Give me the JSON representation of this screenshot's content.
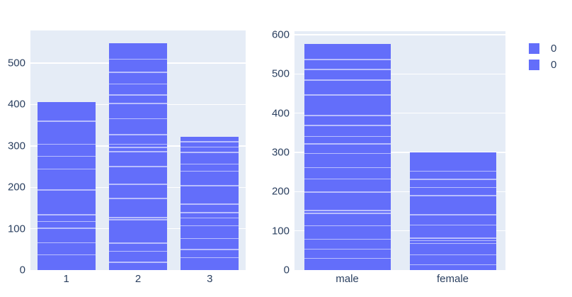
{
  "colors": {
    "background": "#ffffff",
    "plot_background": "#e5ecf6",
    "bar_fill": "#636efa",
    "gridline": "#ffffff",
    "segment_separator": "rgba(255,255,255,0.55)",
    "text": "#2a3f5f"
  },
  "legend": {
    "entries": [
      {
        "label": "0",
        "color": "#636efa"
      },
      {
        "label": "0",
        "color": "#636efa"
      }
    ]
  },
  "chart_data": [
    {
      "type": "bar",
      "mode": "stacked-segments",
      "title": "",
      "xlabel": "",
      "ylabel": "",
      "categories": [
        "1",
        "2",
        "3"
      ],
      "totals": [
        406,
        548,
        322
      ],
      "segment_boundaries": [
        [
          37,
          66,
          101,
          117,
          134,
          194,
          244,
          275,
          304,
          360
        ],
        [
          19,
          45,
          65,
          122,
          127,
          173,
          207,
          250,
          286,
          296,
          304,
          327,
          366,
          403,
          423,
          450,
          478,
          510
        ],
        [
          30,
          50,
          76,
          107,
          126,
          139,
          159,
          204,
          239,
          256,
          284,
          297,
          310
        ]
      ],
      "yticks": [
        0,
        100,
        200,
        300,
        400,
        500
      ],
      "ylim": [
        0,
        579
      ],
      "grid": true,
      "legend_position": "none"
    },
    {
      "type": "bar",
      "mode": "stacked-segments",
      "title": "",
      "xlabel": "",
      "ylabel": "",
      "categories": [
        "male",
        "female"
      ],
      "totals": [
        576,
        300
      ],
      "segment_boundaries": [
        [
          30,
          53,
          79,
          113,
          145,
          152,
          199,
          232,
          261,
          297,
          322,
          341,
          369,
          394,
          446,
          484,
          511,
          537
        ],
        [
          14,
          39,
          68,
          75,
          81,
          115,
          141,
          190,
          211,
          231,
          252
        ]
      ],
      "yticks": [
        0,
        100,
        200,
        300,
        400,
        500,
        600
      ],
      "ylim": [
        0,
        609
      ],
      "grid": true,
      "legend_position": "top-right"
    }
  ]
}
